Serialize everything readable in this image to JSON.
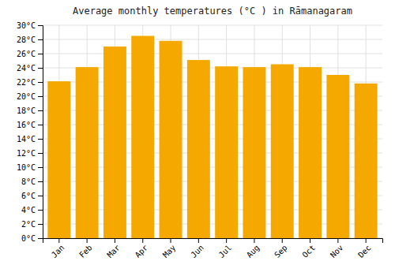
{
  "chart_data": {
    "type": "bar",
    "title": "Average monthly temperatures (°C ) in Rāmanagaram",
    "categories": [
      "Jan",
      "Feb",
      "Mar",
      "Apr",
      "May",
      "Jun",
      "Jul",
      "Aug",
      "Sep",
      "Oct",
      "Nov",
      "Dec"
    ],
    "values": [
      22.1,
      24.1,
      27.0,
      28.5,
      27.8,
      25.1,
      24.2,
      24.1,
      24.5,
      24.1,
      23.0,
      21.8
    ],
    "color": "#F5A800",
    "ylim": [
      0,
      30
    ],
    "yticks": [
      {
        "value": 0,
        "label": "0°C"
      },
      {
        "value": 2,
        "label": "2°C"
      },
      {
        "value": 4,
        "label": "4°C"
      },
      {
        "value": 6,
        "label": "6°C"
      },
      {
        "value": 8,
        "label": "8°C"
      },
      {
        "value": 10,
        "label": "10°C"
      },
      {
        "value": 12,
        "label": "12°C"
      },
      {
        "value": 14,
        "label": "14°C"
      },
      {
        "value": 16,
        "label": "16°C"
      },
      {
        "value": 18,
        "label": "18°C"
      },
      {
        "value": 20,
        "label": "20°C"
      },
      {
        "value": 22,
        "label": "22°C"
      },
      {
        "value": 24,
        "label": "24°C"
      },
      {
        "value": 26,
        "label": "26°C"
      },
      {
        "value": 28,
        "label": "28°C"
      },
      {
        "value": 30,
        "label": "30°C"
      }
    ],
    "grid": true
  }
}
